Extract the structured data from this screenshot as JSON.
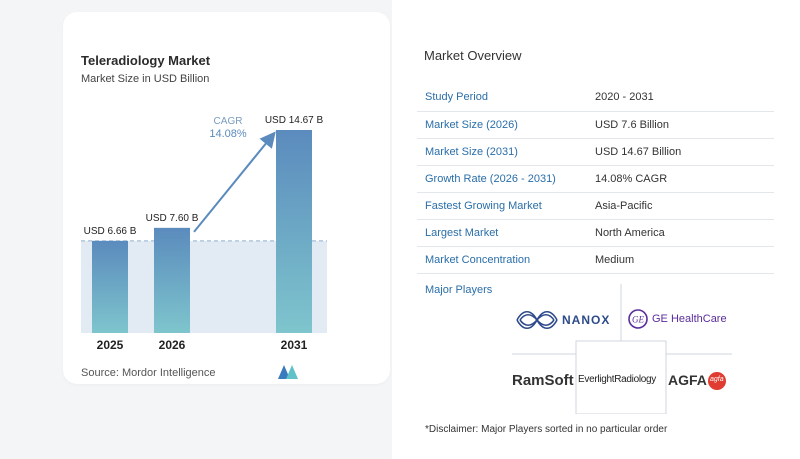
{
  "chart_data": {
    "type": "bar",
    "title": "Teleradiology Market",
    "subtitle": "Market Size in USD Billion",
    "categories": [
      "2025",
      "2026",
      "2031"
    ],
    "values": [
      6.66,
      7.6,
      14.67
    ],
    "value_labels": [
      "USD 6.66 B",
      "USD 7.60 B",
      "USD 14.67 B"
    ],
    "cagr_label": "CAGR",
    "cagr_value": "14.08%",
    "ylim": [
      0,
      15
    ],
    "colors": {
      "bar_top": "#5b8bbd",
      "bar_bottom": "#7ec5cd",
      "cagr": "#5b8bbd"
    }
  },
  "source": "Source: Mordor Intelligence",
  "overview": {
    "title": "Market Overview",
    "rows": [
      {
        "label": "Study Period",
        "value": "2020 - 2031"
      },
      {
        "label": "Market Size (2026)",
        "value": "USD 7.6 Billion"
      },
      {
        "label": "Market Size (2031)",
        "value": "USD 14.67 Billion"
      },
      {
        "label": "Growth Rate (2026 - 2031)",
        "value": "14.08% CAGR"
      },
      {
        "label": "Fastest Growing Market",
        "value": "Asia-Pacific"
      },
      {
        "label": "Largest Market",
        "value": "North America"
      },
      {
        "label": "Market Concentration",
        "value": "Medium"
      }
    ]
  },
  "players": {
    "label": "Major Players",
    "nanox": "NANOX",
    "ge": "GE HealthCare",
    "ramsoft": "RamSoft",
    "everlight": "EverlightRadiology",
    "agfa": "AGFA",
    "agfa_badge": "agfa"
  },
  "disclaimer": "*Disclaimer: Major Players sorted in no particular order"
}
